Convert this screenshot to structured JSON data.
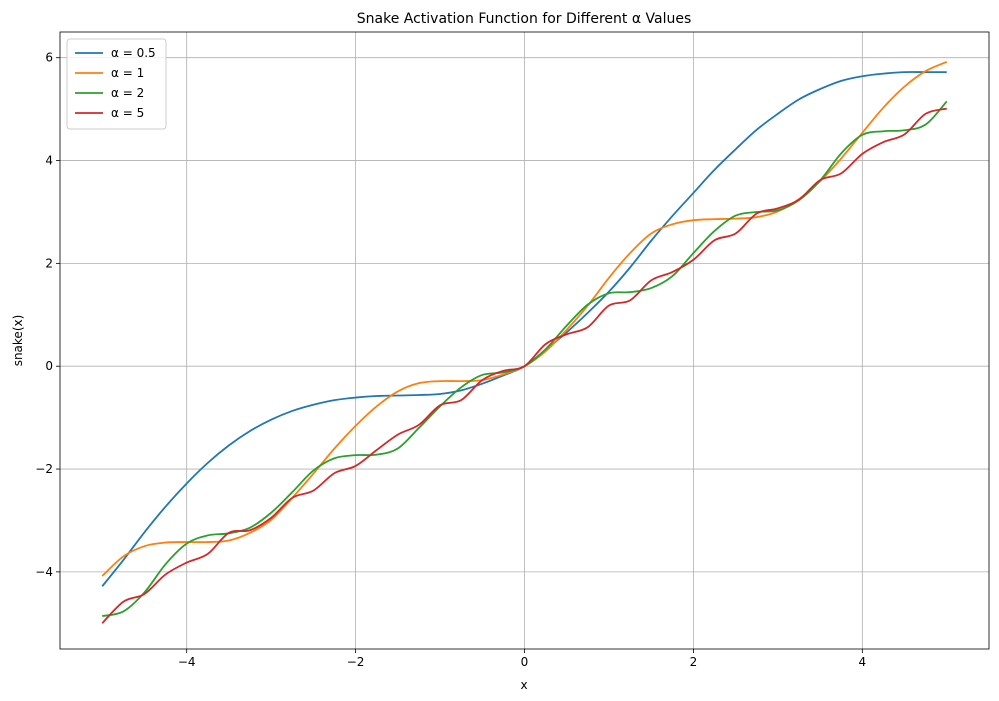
{
  "chart_data": {
    "type": "line",
    "title": "Snake Activation Function for Different α Values",
    "xlabel": "x",
    "ylabel": "snake(x)",
    "xlim": [
      -5.5,
      5.5
    ],
    "ylim": [
      -5.5,
      6.5
    ],
    "xticks": [
      -4,
      -2,
      0,
      2,
      4
    ],
    "yticks": [
      -4,
      -2,
      0,
      2,
      4,
      6
    ],
    "xtick_labels": [
      "−4",
      "−2",
      "0",
      "2",
      "4"
    ],
    "ytick_labels": [
      "−4",
      "−2",
      "0",
      "2",
      "4",
      "6"
    ],
    "grid": true,
    "legend_position": "top-left",
    "x": [
      -5.0,
      -4.75,
      -4.5,
      -4.25,
      -4.0,
      -3.75,
      -3.5,
      -3.25,
      -3.0,
      -2.75,
      -2.5,
      -2.25,
      -2.0,
      -1.75,
      -1.5,
      -1.25,
      -1.0,
      -0.75,
      -0.5,
      -0.25,
      0.0,
      0.25,
      0.5,
      0.75,
      1.0,
      1.25,
      1.5,
      1.75,
      2.0,
      2.25,
      2.5,
      2.75,
      3.0,
      3.25,
      3.5,
      3.75,
      4.0,
      4.25,
      4.5,
      4.75,
      5.0
    ],
    "series": [
      {
        "name": "α = 0.5",
        "color": "#1f77b4",
        "values": [
          -4.28,
          -3.77,
          -3.23,
          -2.73,
          -2.28,
          -1.88,
          -1.54,
          -1.26,
          -1.04,
          -0.87,
          -0.75,
          -0.66,
          -0.61,
          -0.58,
          -0.57,
          -0.56,
          -0.54,
          -0.47,
          -0.34,
          -0.18,
          0.0,
          0.32,
          0.66,
          1.04,
          1.45,
          1.92,
          2.44,
          2.92,
          3.37,
          3.82,
          4.22,
          4.6,
          4.91,
          5.19,
          5.39,
          5.55,
          5.64,
          5.69,
          5.72,
          5.72,
          5.72
        ]
      },
      {
        "name": "α = 1",
        "color": "#ff7f0e",
        "values": [
          -4.08,
          -3.7,
          -3.5,
          -3.43,
          -3.42,
          -3.42,
          -3.39,
          -3.24,
          -2.99,
          -2.56,
          -2.09,
          -1.6,
          -1.16,
          -0.78,
          -0.49,
          -0.33,
          -0.29,
          -0.29,
          -0.27,
          -0.16,
          0.0,
          0.29,
          0.71,
          1.18,
          1.72,
          2.2,
          2.58,
          2.76,
          2.84,
          2.86,
          2.87,
          2.9,
          3.01,
          3.25,
          3.6,
          4.04,
          4.54,
          5.03,
          5.44,
          5.74,
          5.92
        ]
      },
      {
        "name": "α = 2",
        "color": "#2ca02c",
        "values": [
          -4.86,
          -4.77,
          -4.4,
          -3.85,
          -3.45,
          -3.29,
          -3.25,
          -3.14,
          -2.85,
          -2.45,
          -2.03,
          -1.79,
          -1.73,
          -1.72,
          -1.6,
          -1.2,
          -0.78,
          -0.41,
          -0.17,
          -0.12,
          0.0,
          0.33,
          0.79,
          1.2,
          1.42,
          1.44,
          1.52,
          1.75,
          2.2,
          2.63,
          2.93,
          3.0,
          3.03,
          3.23,
          3.61,
          4.14,
          4.5,
          4.57,
          4.59,
          4.7,
          5.15
        ]
      },
      {
        "name": "α = 5",
        "color": "#d62728",
        "values": [
          -5.0,
          -4.58,
          -4.43,
          -4.05,
          -3.82,
          -3.65,
          -3.24,
          -3.19,
          -2.95,
          -2.56,
          -2.42,
          -2.08,
          -1.94,
          -1.63,
          -1.33,
          -1.14,
          -0.76,
          -0.66,
          -0.27,
          -0.09,
          0.0,
          0.43,
          0.62,
          0.76,
          1.18,
          1.28,
          1.67,
          1.83,
          2.07,
          2.45,
          2.58,
          2.97,
          3.07,
          3.24,
          3.62,
          3.75,
          4.13,
          4.36,
          4.51,
          4.91,
          5.01
        ]
      }
    ]
  }
}
